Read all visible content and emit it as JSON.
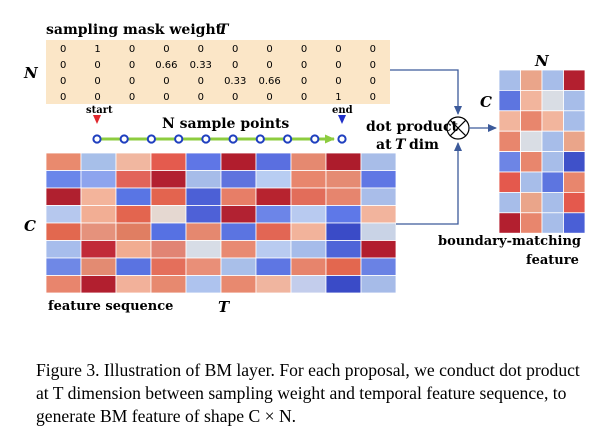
{
  "figure": {
    "mask_title": "sampling mask weight",
    "mask_title_var": "T",
    "mask_rows_label": "N",
    "mask_values": [
      [
        "0",
        "1",
        "0",
        "0",
        "0",
        "0",
        "0",
        "0",
        "0",
        "0"
      ],
      [
        "0",
        "0",
        "0",
        "0.66",
        "0.33",
        "0",
        "0",
        "0",
        "0",
        "0"
      ],
      [
        "0",
        "0",
        "0",
        "0",
        "0",
        "0.33",
        "0.66",
        "0",
        "0",
        "0"
      ],
      [
        "0",
        "0",
        "0",
        "0",
        "0",
        "0",
        "0",
        "0",
        "1",
        "0"
      ]
    ],
    "start_label": "start",
    "end_label": "end",
    "sample_points_label": "N sample points",
    "dot_product_line1": "dot product",
    "dot_product_line2_prefix": "at",
    "dot_product_line2_var": "T",
    "dot_product_line2_suffix": "dim",
    "feature_rows_label": "C",
    "feature_cols_label": "T",
    "feature_sequence_label": "feature sequence",
    "output_cols_label": "N",
    "output_rows_label": "C",
    "boundary_label_line1": "boundary-matching",
    "boundary_label_line2": "feature",
    "colors": {
      "mask_bg": "#fbe6c7",
      "arrow_green": "#8dcc3f",
      "marker_blue": "#1f3fbf",
      "start_red": "#e0262c",
      "end_blue": "#1f2fc8"
    },
    "feature_grid": [
      [
        "#e98a6e",
        "#a7bfe9",
        "#f1b7a0",
        "#e45b4e",
        "#5f76e6",
        "#b11d2d",
        "#5a6fe0",
        "#e58970",
        "#ad1c2c",
        "#a8bde8"
      ],
      [
        "#6a86ea",
        "#8da4ee",
        "#e2645a",
        "#b22030",
        "#a6bce9",
        "#5f73de",
        "#b8cdf2",
        "#e8866d",
        "#e58b73",
        "#6077e4"
      ],
      [
        "#b0202f",
        "#f3b49b",
        "#5975e4",
        "#e3644f",
        "#4c60d6",
        "#e77e67",
        "#b7232f",
        "#e26d5a",
        "#e6856e",
        "#a9bde9"
      ],
      [
        "#b6c8ee",
        "#f2ae94",
        "#e3654f",
        "#e5d8d1",
        "#4e61d7",
        "#b22232",
        "#6c85e8",
        "#b8caf0",
        "#5e78e8",
        "#f2b49d"
      ],
      [
        "#e2684f",
        "#e5927c",
        "#e07e62",
        "#5671e3",
        "#e5886f",
        "#5b74e1",
        "#e26654",
        "#f2b39b",
        "#3a4bc7",
        "#c9d3e6"
      ],
      [
        "#a7bdec",
        "#c12a38",
        "#f1ac91",
        "#e18474",
        "#d7dde6",
        "#e88a72",
        "#b9cbf0",
        "#a6bcea",
        "#4e64d8",
        "#b21d2e"
      ],
      [
        "#6f88e6",
        "#e38b72",
        "#5a73e1",
        "#e46f5b",
        "#e98f78",
        "#a9bfe9",
        "#5e76e3",
        "#e7846c",
        "#e3674f",
        "#6a82e4"
      ],
      [
        "#e8856d",
        "#b21f2f",
        "#f2b19a",
        "#e7896f",
        "#aec3ee",
        "#e8896f",
        "#f0b59f",
        "#c3cdec",
        "#3a4bc7",
        "#a6bbe8"
      ]
    ],
    "output_grid": [
      [
        "#a7bde9",
        "#eaa58a",
        "#a7bde9",
        "#b31f2f"
      ],
      [
        "#5d75e0",
        "#f2b59d",
        "#d9dde4",
        "#a7bde9"
      ],
      [
        "#f2b59d",
        "#e8866d",
        "#f2b59d",
        "#a7bde9"
      ],
      [
        "#e8866d",
        "#d9dde4",
        "#a7bde9",
        "#eaa58a"
      ],
      [
        "#6d85e5",
        "#e8866d",
        "#a7bde9",
        "#3f51c9"
      ],
      [
        "#e4594d",
        "#a7bde9",
        "#5d75e0",
        "#e8866d"
      ],
      [
        "#a7bde9",
        "#eaa58a",
        "#a7bde9",
        "#e4594d"
      ],
      [
        "#b31f2f",
        "#e8866d",
        "#a7bde9",
        "#4a5fd6"
      ]
    ]
  },
  "caption": {
    "text": "Figure 3. Illustration of BM layer. For each proposal, we conduct dot product at T dimension between sampling weight and temporal feature sequence, to generate BM feature of shape C × N."
  }
}
